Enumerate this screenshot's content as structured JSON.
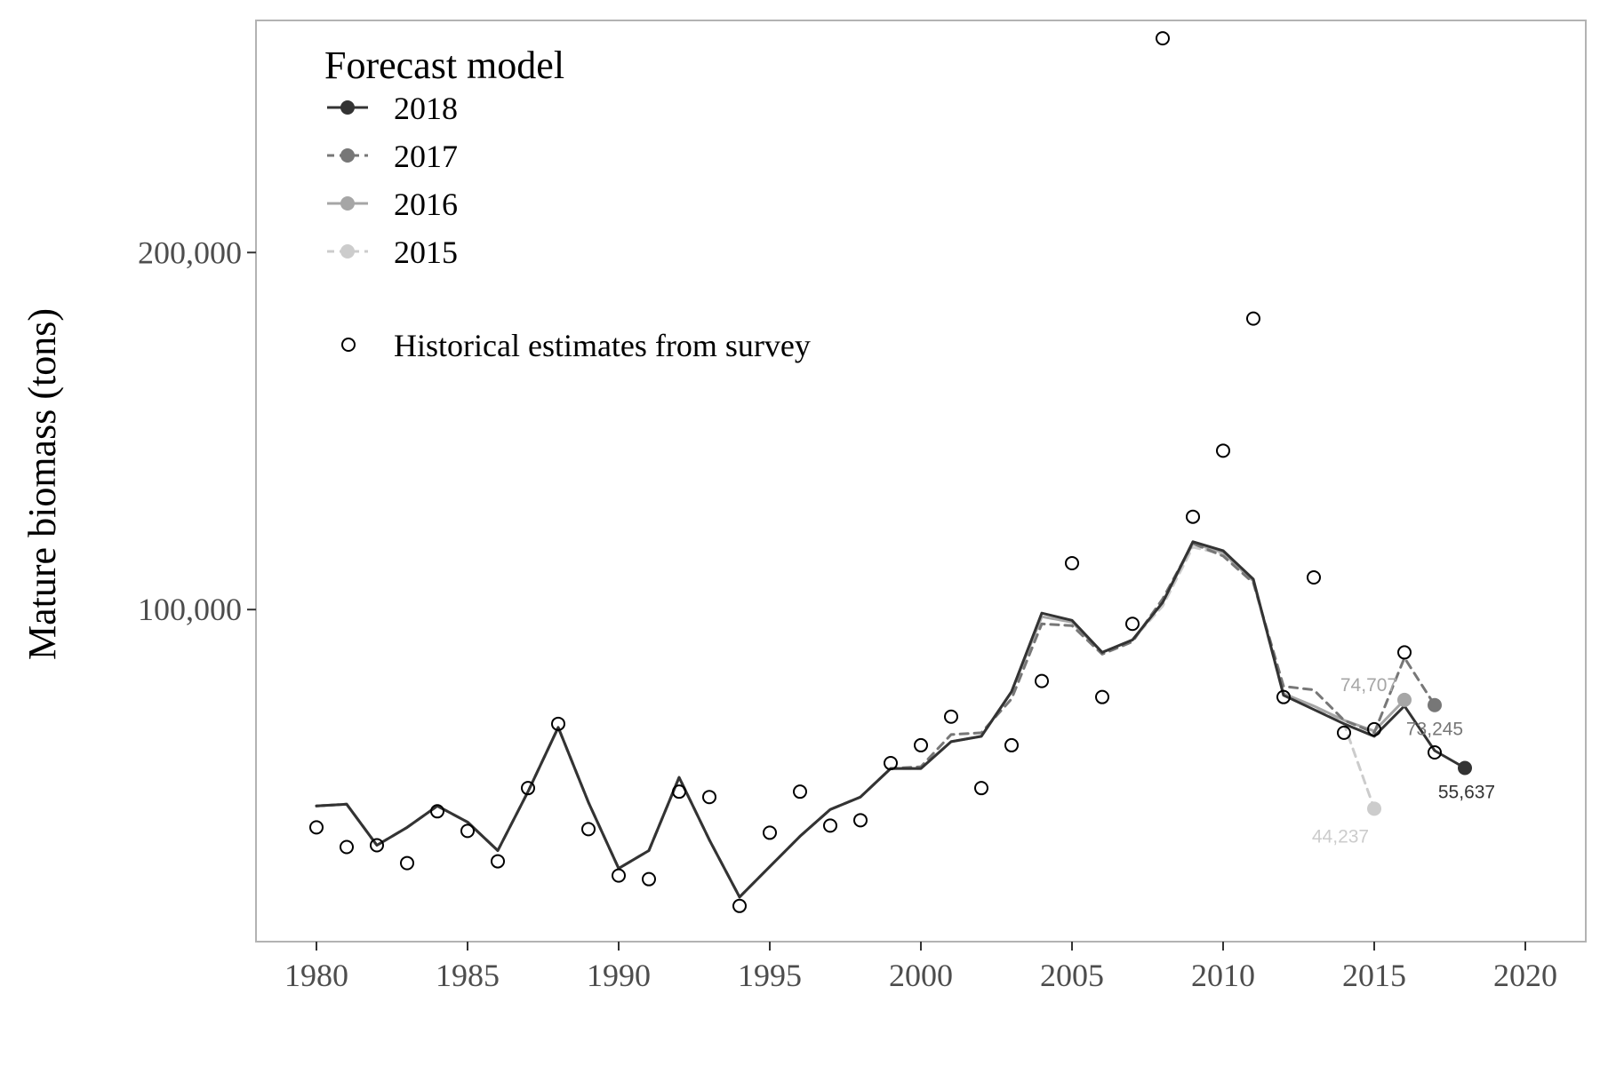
{
  "chart_data": {
    "type": "line",
    "title": "",
    "xlabel": "",
    "ylabel": "Mature biomass (tons)",
    "xlim": [
      1978,
      2022
    ],
    "ylim": [
      7000,
      265000
    ],
    "x_ticks": [
      1980,
      1985,
      1990,
      1995,
      2000,
      2005,
      2010,
      2015,
      2020
    ],
    "y_ticks": [
      100000,
      200000
    ],
    "y_tick_labels": [
      "100,000",
      "200,000"
    ],
    "grid": false,
    "legend": {
      "title": "Forecast model",
      "position": "top-left",
      "survey_label": "Historical estimates from survey"
    },
    "colors": {
      "2018": "#333333",
      "2017": "#777777",
      "2016": "#a6a6a6",
      "2015": "#cccccc",
      "panel_border": "#b3b3b3",
      "survey_marker": "#000000"
    },
    "series": [
      {
        "name": "2018",
        "line_style": "solid",
        "x": [
          1980,
          1981,
          1982,
          1983,
          1984,
          1985,
          1986,
          1987,
          1988,
          1989,
          1990,
          1991,
          1992,
          1993,
          1994,
          1995,
          1996,
          1997,
          1998,
          1999,
          2000,
          2001,
          2002,
          2003,
          2004,
          2005,
          2006,
          2007,
          2008,
          2009,
          2010,
          2011,
          2012,
          2013,
          2014,
          2015,
          2016,
          2017,
          2018
        ],
        "y": [
          45000,
          45500,
          34000,
          39000,
          45000,
          40500,
          32500,
          49000,
          67000,
          46000,
          27500,
          32500,
          53000,
          35500,
          19500,
          28000,
          36500,
          44000,
          47500,
          55500,
          55500,
          63000,
          64500,
          77000,
          99000,
          97000,
          88000,
          91500,
          102000,
          119000,
          116500,
          108500,
          76000,
          72000,
          68000,
          64500,
          73000,
          60500,
          55637
        ]
      },
      {
        "name": "2017",
        "line_style": "dashed",
        "x": [
          1980,
          1981,
          1982,
          1983,
          1984,
          1985,
          1986,
          1987,
          1988,
          1989,
          1990,
          1991,
          1992,
          1993,
          1994,
          1995,
          1996,
          1997,
          1998,
          1999,
          2000,
          2001,
          2002,
          2003,
          2004,
          2005,
          2006,
          2007,
          2008,
          2009,
          2010,
          2011,
          2012,
          2013,
          2014,
          2015,
          2016,
          2017
        ],
        "y": [
          45000,
          45500,
          34000,
          39000,
          45000,
          40500,
          32500,
          49000,
          67000,
          46000,
          27500,
          32500,
          53000,
          35500,
          19500,
          28000,
          36500,
          44000,
          47500,
          55500,
          56000,
          65000,
          65500,
          75000,
          96000,
          95500,
          87500,
          91000,
          103000,
          118500,
          115000,
          107500,
          78500,
          77500,
          69000,
          65500,
          86500,
          73245
        ]
      },
      {
        "name": "2016",
        "line_style": "solid",
        "x": [
          1980,
          1981,
          1982,
          1983,
          1984,
          1985,
          1986,
          1987,
          1988,
          1989,
          1990,
          1991,
          1992,
          1993,
          1994,
          1995,
          1996,
          1997,
          1998,
          1999,
          2000,
          2001,
          2002,
          2003,
          2004,
          2005,
          2006,
          2007,
          2008,
          2009,
          2010,
          2011,
          2012,
          2013,
          2014,
          2015,
          2016
        ],
        "y": [
          45000,
          45500,
          34000,
          39000,
          45000,
          40500,
          32500,
          49000,
          67000,
          46000,
          27500,
          32500,
          53000,
          35500,
          19500,
          28000,
          36500,
          44000,
          47500,
          55500,
          55500,
          63000,
          64500,
          77000,
          98000,
          96500,
          88000,
          91500,
          102000,
          118500,
          116000,
          108000,
          76500,
          73000,
          69000,
          66000,
          74707
        ]
      },
      {
        "name": "2015",
        "line_style": "dashed",
        "x": [
          1980,
          1981,
          1982,
          1983,
          1984,
          1985,
          1986,
          1987,
          1988,
          1989,
          1990,
          1991,
          1992,
          1993,
          1994,
          1995,
          1996,
          1997,
          1998,
          1999,
          2000,
          2001,
          2002,
          2003,
          2004,
          2005,
          2006,
          2007,
          2008,
          2009,
          2010,
          2011,
          2012,
          2013,
          2014,
          2015
        ],
        "y": [
          45000,
          45500,
          34000,
          39000,
          45000,
          40500,
          32500,
          49000,
          67000,
          46000,
          27500,
          32500,
          53000,
          35500,
          19500,
          28000,
          36500,
          44000,
          47500,
          55500,
          55500,
          63000,
          64500,
          77000,
          98000,
          96500,
          88000,
          91500,
          101000,
          117500,
          115500,
          108000,
          76000,
          73000,
          68000,
          44237
        ]
      }
    ],
    "survey": {
      "name": "Historical estimates from survey",
      "x": [
        1980,
        1981,
        1982,
        1983,
        1984,
        1985,
        1986,
        1987,
        1988,
        1989,
        1990,
        1991,
        1992,
        1993,
        1994,
        1995,
        1996,
        1997,
        1998,
        1999,
        2000,
        2001,
        2002,
        2003,
        2004,
        2005,
        2006,
        2007,
        2008,
        2009,
        2010,
        2011,
        2012,
        2013,
        2014,
        2015,
        2016,
        2017
      ],
      "y": [
        39000,
        33500,
        34000,
        29000,
        43500,
        38000,
        29500,
        50000,
        68000,
        38500,
        25500,
        24500,
        49000,
        47500,
        17000,
        37500,
        49000,
        39500,
        41000,
        57000,
        62000,
        70000,
        50000,
        62000,
        80000,
        113000,
        75500,
        96000,
        260000,
        126000,
        144500,
        181500,
        75500,
        109000,
        65500,
        66500,
        88000,
        60000
      ]
    },
    "end_labels": [
      {
        "series": "2018",
        "x": 2018,
        "y": 55637,
        "text": "55,637"
      },
      {
        "series": "2017",
        "x": 2017,
        "y": 73245,
        "text": "73,245"
      },
      {
        "series": "2016",
        "x": 2016,
        "y": 74707,
        "text": "74,707"
      },
      {
        "series": "2015",
        "x": 2015,
        "y": 44237,
        "text": "44,237"
      }
    ]
  }
}
